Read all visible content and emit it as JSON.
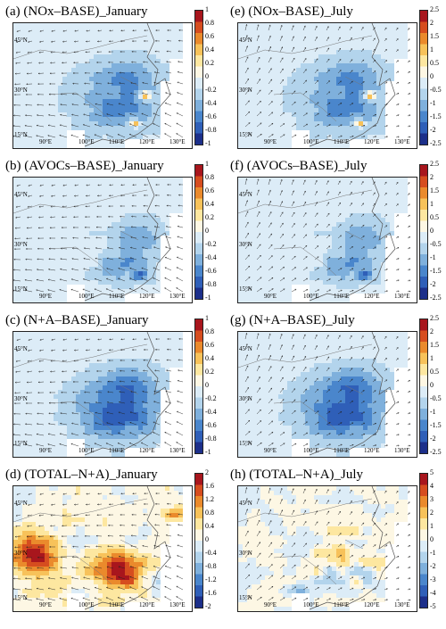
{
  "lat_labels": [
    "45°N",
    "30°N",
    "15°N"
  ],
  "lon_labels": [
    "90°E",
    "100°E",
    "110°E",
    "120°E",
    "130°E"
  ],
  "panels": [
    {
      "title": "(a) (NOx–BASE)_January",
      "ticks": [
        "1",
        "0.8",
        "0.6",
        "0.4",
        "0.2",
        "0",
        "-0.2",
        "-0.4",
        "-0.6",
        "-0.8",
        "-1"
      ],
      "vmin": -1,
      "vmax": 1,
      "season": "jan",
      "pattern": "nox"
    },
    {
      "title": "(e) (NOx–BASE)_July",
      "ticks": [
        "2.5",
        "2",
        "1.5",
        "1",
        "0.5",
        "0",
        "-0.5",
        "-1",
        "-1.5",
        "-2",
        "-2.5"
      ],
      "vmin": -2.5,
      "vmax": 2.5,
      "season": "jul",
      "pattern": "nox"
    },
    {
      "title": "(b) (AVOCs–BASE)_January",
      "ticks": [
        "1",
        "0.8",
        "0.6",
        "0.4",
        "0.2",
        "0",
        "-0.2",
        "-0.4",
        "-0.6",
        "-0.8",
        "-1"
      ],
      "vmin": -1,
      "vmax": 1,
      "season": "jan",
      "pattern": "avoc"
    },
    {
      "title": "(f) (AVOCs–BASE)_July",
      "ticks": [
        "2.5",
        "2",
        "1.5",
        "1",
        "0.5",
        "0",
        "-0.5",
        "-1",
        "-1.5",
        "-2",
        "-2.5"
      ],
      "vmin": -2.5,
      "vmax": 2.5,
      "season": "jul",
      "pattern": "avoc"
    },
    {
      "title": "(c) (N+A–BASE)_January",
      "ticks": [
        "1",
        "0.8",
        "0.6",
        "0.4",
        "0.2",
        "0",
        "-0.2",
        "-0.4",
        "-0.6",
        "-0.8",
        "-1"
      ],
      "vmin": -1,
      "vmax": 1,
      "season": "jan",
      "pattern": "na"
    },
    {
      "title": "(g) (N+A–BASE)_July",
      "ticks": [
        "2.5",
        "2",
        "1.5",
        "1",
        "0.5",
        "0",
        "-0.5",
        "-1",
        "-1.5",
        "-2",
        "-2.5"
      ],
      "vmin": -2.5,
      "vmax": 2.5,
      "season": "jul",
      "pattern": "na"
    },
    {
      "title": "(d) (TOTAL–N+A)_January",
      "ticks": [
        "2",
        "1.6",
        "1.2",
        "0.8",
        "0.4",
        "0",
        "-0.4",
        "-0.8",
        "-1.2",
        "-1.6",
        "-2"
      ],
      "vmin": -2,
      "vmax": 2,
      "season": "jan",
      "pattern": "totjan"
    },
    {
      "title": "(h) (TOTAL–N+A)_July",
      "ticks": [
        "5",
        "4",
        "3",
        "2",
        "1",
        "0",
        "-1",
        "-2",
        "-3",
        "-4",
        "-5"
      ],
      "vmin": -5,
      "vmax": 5,
      "season": "jul",
      "pattern": "totjul"
    }
  ],
  "colors": {
    "scale": [
      "#1c2f8a",
      "#2f5fb8",
      "#4a86cc",
      "#7fb0dc",
      "#b3d4ec",
      "#dcecf7",
      "#fdf7e4",
      "#fde7a0",
      "#f7c25a",
      "#ea8a2c",
      "#d64d1f",
      "#a8161d"
    ]
  }
}
